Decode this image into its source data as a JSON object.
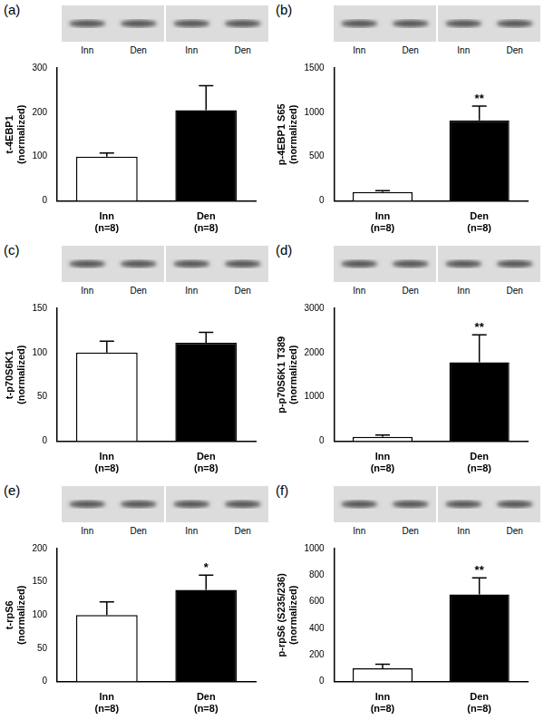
{
  "chart_data": [
    {
      "type": "bar",
      "panel": "(a)",
      "ylabel": [
        "t-4EBP1",
        "(normalized)"
      ],
      "categories": [
        [
          "Inn",
          "(n=8)"
        ],
        [
          "Den",
          "(n=8)"
        ]
      ],
      "values": [
        100,
        205
      ],
      "errors": [
        8,
        55
      ],
      "significance": [
        null,
        null
      ],
      "colors": [
        "#ffffff",
        "#000000"
      ],
      "ylim": [
        0,
        300
      ],
      "yticks": [
        0,
        100,
        200,
        300
      ],
      "grid": false,
      "blot_lanes": [
        "Inn",
        "Den",
        "Inn",
        "Den"
      ]
    },
    {
      "type": "bar",
      "panel": "(b)",
      "ylabel": [
        "p-4EBP1 S65",
        "(normalized)"
      ],
      "categories": [
        [
          "Inn",
          "(n=8)"
        ],
        [
          "Den",
          "(n=8)"
        ]
      ],
      "values": [
        100,
        910
      ],
      "errors": [
        15,
        160
      ],
      "significance": [
        null,
        "**"
      ],
      "colors": [
        "#ffffff",
        "#000000"
      ],
      "ylim": [
        0,
        1500
      ],
      "yticks": [
        0,
        500,
        1000,
        1500
      ],
      "grid": false,
      "blot_lanes": [
        "Inn",
        "Den",
        "Inn",
        "Den"
      ]
    },
    {
      "type": "bar",
      "panel": "(c)",
      "ylabel": [
        "t-p70S6K1",
        "(normalized)"
      ],
      "categories": [
        [
          "Inn",
          "(n=8)"
        ],
        [
          "Den",
          "(n=8)"
        ]
      ],
      "values": [
        100,
        111
      ],
      "errors": [
        13,
        12
      ],
      "significance": [
        null,
        null
      ],
      "colors": [
        "#ffffff",
        "#000000"
      ],
      "ylim": [
        0,
        150
      ],
      "yticks": [
        0,
        50,
        100,
        150
      ],
      "grid": false,
      "blot_lanes": [
        "Inn",
        "Den",
        "Inn",
        "Den"
      ]
    },
    {
      "type": "bar",
      "panel": "(d)",
      "ylabel": [
        "p-p70S6K1 T389",
        "(normalized)"
      ],
      "categories": [
        [
          "Inn",
          "(n=8)"
        ],
        [
          "Den",
          "(n=8)"
        ]
      ],
      "values": [
        100,
        1780
      ],
      "errors": [
        40,
        620
      ],
      "significance": [
        null,
        "**"
      ],
      "colors": [
        "#ffffff",
        "#000000"
      ],
      "ylim": [
        0,
        3000
      ],
      "yticks": [
        0,
        1000,
        2000,
        3000
      ],
      "grid": false,
      "blot_lanes": [
        "Inn",
        "Den",
        "Inn",
        "Den"
      ]
    },
    {
      "type": "bar",
      "panel": "(e)",
      "ylabel": [
        "t-rpS6",
        "(normalized)"
      ],
      "categories": [
        [
          "Inn",
          "(n=8)"
        ],
        [
          "Den",
          "(n=8)"
        ]
      ],
      "values": [
        100,
        138
      ],
      "errors": [
        20,
        22
      ],
      "significance": [
        null,
        "*"
      ],
      "colors": [
        "#ffffff",
        "#000000"
      ],
      "ylim": [
        0,
        200
      ],
      "yticks": [
        0,
        50,
        100,
        150,
        200
      ],
      "grid": false,
      "blot_lanes": [
        "Inn",
        "Den",
        "Inn",
        "Den"
      ]
    },
    {
      "type": "bar",
      "panel": "(f)",
      "ylabel": [
        "p-rpS6 (S235/236)",
        "(normalized)"
      ],
      "categories": [
        [
          "Inn",
          "(n=8)"
        ],
        [
          "Den",
          "(n=8)"
        ]
      ],
      "values": [
        100,
        655
      ],
      "errors": [
        30,
        125
      ],
      "significance": [
        null,
        "**"
      ],
      "colors": [
        "#ffffff",
        "#000000"
      ],
      "ylim": [
        0,
        1000
      ],
      "yticks": [
        0,
        200,
        400,
        600,
        800,
        1000
      ],
      "grid": false,
      "blot_lanes": [
        "Inn",
        "Den",
        "Inn",
        "Den"
      ]
    }
  ]
}
